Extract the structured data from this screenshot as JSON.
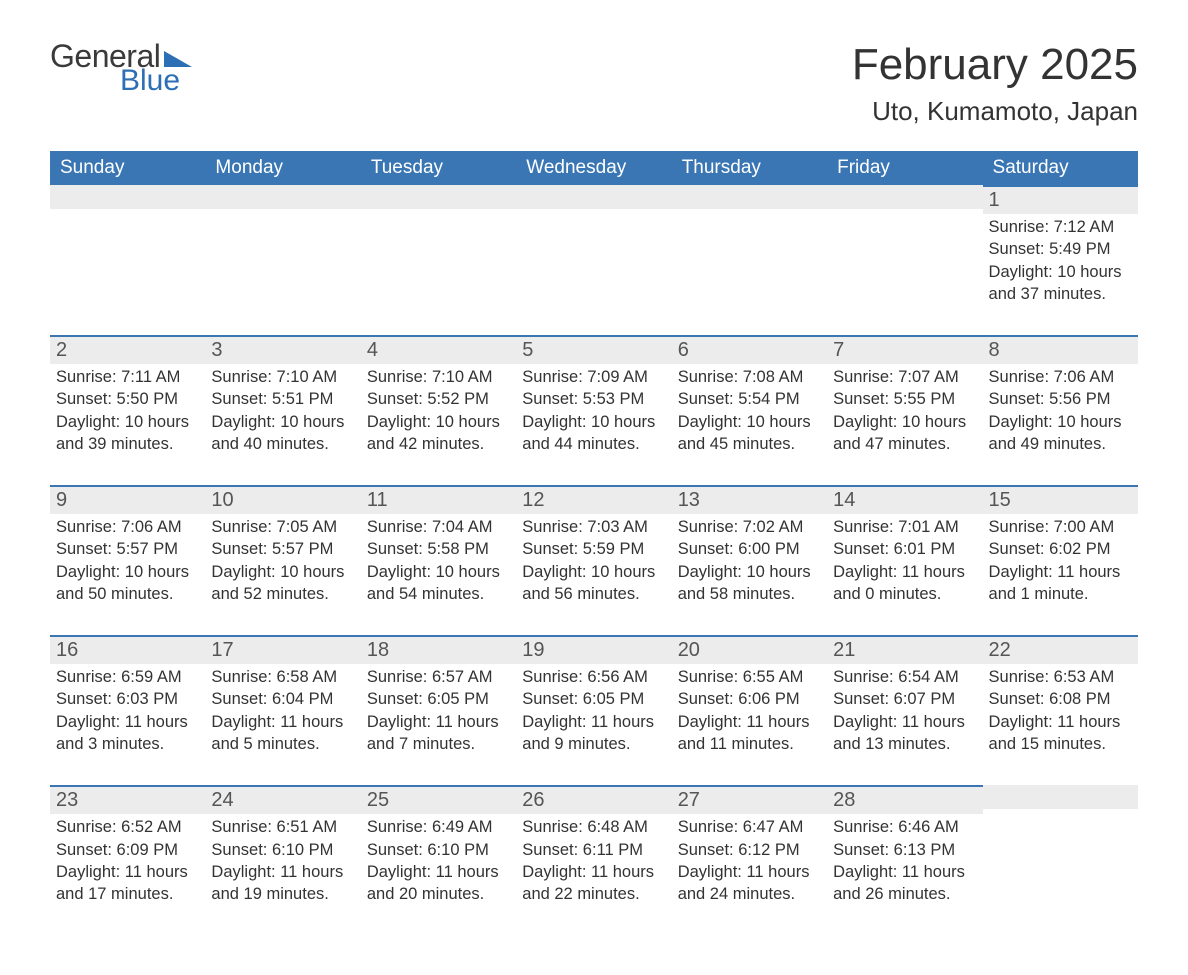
{
  "logo": {
    "text1": "General",
    "text2": "Blue"
  },
  "title": "February 2025",
  "location": "Uto, Kumamoto, Japan",
  "colors": {
    "header_bg": "#3a76b4",
    "daynum_bg": "#ececec",
    "border_top": "#3a76b4",
    "text": "#333333",
    "logo_blue": "#2d6fb5"
  },
  "weekdays": [
    "Sunday",
    "Monday",
    "Tuesday",
    "Wednesday",
    "Thursday",
    "Friday",
    "Saturday"
  ],
  "weeks": [
    [
      null,
      null,
      null,
      null,
      null,
      null,
      {
        "n": "1",
        "sunrise": "7:12 AM",
        "sunset": "5:49 PM",
        "daylight": "10 hours and 37 minutes."
      }
    ],
    [
      {
        "n": "2",
        "sunrise": "7:11 AM",
        "sunset": "5:50 PM",
        "daylight": "10 hours and 39 minutes."
      },
      {
        "n": "3",
        "sunrise": "7:10 AM",
        "sunset": "5:51 PM",
        "daylight": "10 hours and 40 minutes."
      },
      {
        "n": "4",
        "sunrise": "7:10 AM",
        "sunset": "5:52 PM",
        "daylight": "10 hours and 42 minutes."
      },
      {
        "n": "5",
        "sunrise": "7:09 AM",
        "sunset": "5:53 PM",
        "daylight": "10 hours and 44 minutes."
      },
      {
        "n": "6",
        "sunrise": "7:08 AM",
        "sunset": "5:54 PM",
        "daylight": "10 hours and 45 minutes."
      },
      {
        "n": "7",
        "sunrise": "7:07 AM",
        "sunset": "5:55 PM",
        "daylight": "10 hours and 47 minutes."
      },
      {
        "n": "8",
        "sunrise": "7:06 AM",
        "sunset": "5:56 PM",
        "daylight": "10 hours and 49 minutes."
      }
    ],
    [
      {
        "n": "9",
        "sunrise": "7:06 AM",
        "sunset": "5:57 PM",
        "daylight": "10 hours and 50 minutes."
      },
      {
        "n": "10",
        "sunrise": "7:05 AM",
        "sunset": "5:57 PM",
        "daylight": "10 hours and 52 minutes."
      },
      {
        "n": "11",
        "sunrise": "7:04 AM",
        "sunset": "5:58 PM",
        "daylight": "10 hours and 54 minutes."
      },
      {
        "n": "12",
        "sunrise": "7:03 AM",
        "sunset": "5:59 PM",
        "daylight": "10 hours and 56 minutes."
      },
      {
        "n": "13",
        "sunrise": "7:02 AM",
        "sunset": "6:00 PM",
        "daylight": "10 hours and 58 minutes."
      },
      {
        "n": "14",
        "sunrise": "7:01 AM",
        "sunset": "6:01 PM",
        "daylight": "11 hours and 0 minutes."
      },
      {
        "n": "15",
        "sunrise": "7:00 AM",
        "sunset": "6:02 PM",
        "daylight": "11 hours and 1 minute."
      }
    ],
    [
      {
        "n": "16",
        "sunrise": "6:59 AM",
        "sunset": "6:03 PM",
        "daylight": "11 hours and 3 minutes."
      },
      {
        "n": "17",
        "sunrise": "6:58 AM",
        "sunset": "6:04 PM",
        "daylight": "11 hours and 5 minutes."
      },
      {
        "n": "18",
        "sunrise": "6:57 AM",
        "sunset": "6:05 PM",
        "daylight": "11 hours and 7 minutes."
      },
      {
        "n": "19",
        "sunrise": "6:56 AM",
        "sunset": "6:05 PM",
        "daylight": "11 hours and 9 minutes."
      },
      {
        "n": "20",
        "sunrise": "6:55 AM",
        "sunset": "6:06 PM",
        "daylight": "11 hours and 11 minutes."
      },
      {
        "n": "21",
        "sunrise": "6:54 AM",
        "sunset": "6:07 PM",
        "daylight": "11 hours and 13 minutes."
      },
      {
        "n": "22",
        "sunrise": "6:53 AM",
        "sunset": "6:08 PM",
        "daylight": "11 hours and 15 minutes."
      }
    ],
    [
      {
        "n": "23",
        "sunrise": "6:52 AM",
        "sunset": "6:09 PM",
        "daylight": "11 hours and 17 minutes."
      },
      {
        "n": "24",
        "sunrise": "6:51 AM",
        "sunset": "6:10 PM",
        "daylight": "11 hours and 19 minutes."
      },
      {
        "n": "25",
        "sunrise": "6:49 AM",
        "sunset": "6:10 PM",
        "daylight": "11 hours and 20 minutes."
      },
      {
        "n": "26",
        "sunrise": "6:48 AM",
        "sunset": "6:11 PM",
        "daylight": "11 hours and 22 minutes."
      },
      {
        "n": "27",
        "sunrise": "6:47 AM",
        "sunset": "6:12 PM",
        "daylight": "11 hours and 24 minutes."
      },
      {
        "n": "28",
        "sunrise": "6:46 AM",
        "sunset": "6:13 PM",
        "daylight": "11 hours and 26 minutes."
      },
      null
    ]
  ],
  "labels": {
    "sunrise": "Sunrise: ",
    "sunset": "Sunset: ",
    "daylight": "Daylight: "
  }
}
